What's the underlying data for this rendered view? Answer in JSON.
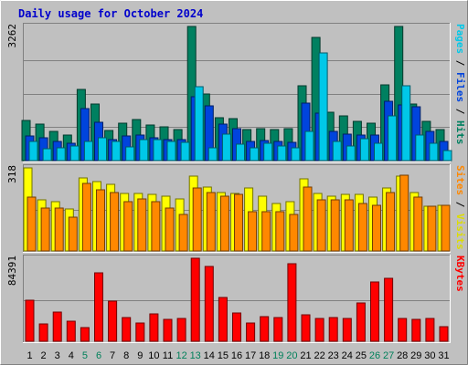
{
  "chart_data": {
    "type": "bar",
    "title": "Daily usage for October 2024",
    "x": [
      "1",
      "2",
      "3",
      "4",
      "5",
      "6",
      "7",
      "8",
      "9",
      "10",
      "11",
      "12",
      "13",
      "14",
      "15",
      "16",
      "17",
      "18",
      "19",
      "20",
      "21",
      "22",
      "23",
      "24",
      "25",
      "26",
      "27",
      "28",
      "29",
      "30",
      "31"
    ],
    "weekend_days": [
      "5",
      "6",
      "12",
      "13",
      "19",
      "20",
      "26",
      "27"
    ],
    "panels": [
      {
        "max_label": "3262",
        "max": 3262,
        "legend": [
          {
            "text": "Pages",
            "color": "#00c8e8"
          },
          {
            "text": " / ",
            "color": "#000000"
          },
          {
            "text": "Files",
            "color": "#0044dd"
          },
          {
            "text": " / ",
            "color": "#000000"
          },
          {
            "text": "Hits",
            "color": "#008060"
          }
        ],
        "series": [
          {
            "name": "Hits",
            "color": "#008060",
            "values": [
              970,
              890,
              720,
              630,
              1720,
              1380,
              730,
              910,
              1000,
              860,
              820,
              760,
              3262,
              1630,
              1050,
              1010,
              760,
              780,
              760,
              780,
              1820,
              3000,
              1170,
              1090,
              960,
              910,
              1850,
              3262,
              1370,
              950,
              760
            ]
          },
          {
            "name": "Files",
            "color": "#0044dd",
            "values": [
              600,
              560,
              470,
              420,
              1260,
              940,
              500,
              600,
              620,
              560,
              520,
              520,
              1560,
              1330,
              880,
              770,
              470,
              480,
              470,
              450,
              1400,
              1160,
              720,
              650,
              620,
              620,
              1440,
              1360,
              1300,
              710,
              460
            ]
          },
          {
            "name": "Pages",
            "color": "#00c8e8",
            "values": [
              470,
              280,
              320,
              360,
              470,
              560,
              470,
              340,
              500,
              510,
              460,
              440,
              1800,
              320,
              640,
              400,
              320,
              430,
              360,
              300,
              720,
              2620,
              460,
              350,
              540,
              430,
              1090,
              1810,
              620,
              420,
              250
            ]
          }
        ]
      },
      {
        "max_label": "318",
        "max": 318,
        "legend": [
          {
            "text": "Sites",
            "color": "#ff8800"
          },
          {
            "text": " / ",
            "color": "#000000"
          },
          {
            "text": "Visits",
            "color": "#dddd00"
          }
        ],
        "series": [
          {
            "name": "Visits",
            "color": "#ffff00",
            "values": [
              318,
              195,
              190,
              160,
              280,
              265,
              255,
              220,
              220,
              215,
              210,
              200,
              285,
              245,
              225,
              220,
              240,
              210,
              180,
              190,
              275,
              220,
              210,
              215,
              215,
              205,
              240,
              285,
              225,
              170,
              175
            ]
          },
          {
            "name": "Sites",
            "color": "#ff8800",
            "values": [
              205,
              165,
              165,
              130,
              260,
              235,
              225,
              190,
              200,
              190,
              165,
              140,
              240,
              225,
              210,
              215,
              150,
              150,
              150,
              140,
              245,
              195,
              195,
              195,
              180,
              175,
              225,
              290,
              205,
              170,
              175
            ]
          }
        ]
      },
      {
        "max_label": "84391",
        "max": 84391,
        "legend": [
          {
            "text": "KBytes",
            "color": "#ff0000"
          }
        ],
        "series": [
          {
            "name": "KBytes",
            "color": "#ff0000",
            "values": [
              41900,
              17800,
              29400,
              20000,
              13800,
              69700,
              40800,
              23800,
              18200,
              27400,
              22300,
              23300,
              84391,
              75600,
              44200,
              28500,
              18900,
              24600,
              23700,
              78900,
              26700,
              23200,
              23700,
              23400,
              38800,
              60400,
              63800,
              23200,
              22400,
              22800,
              15000
            ]
          }
        ]
      }
    ]
  }
}
